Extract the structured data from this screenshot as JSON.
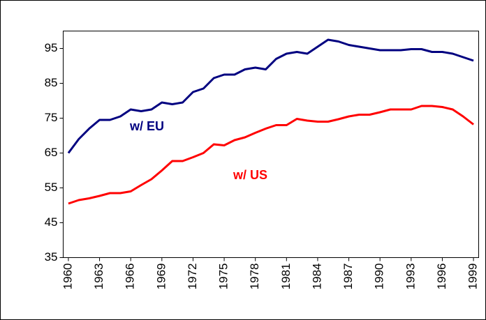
{
  "chart_data": {
    "type": "line",
    "x": [
      1960,
      1961,
      1962,
      1963,
      1964,
      1965,
      1966,
      1967,
      1968,
      1969,
      1970,
      1971,
      1972,
      1973,
      1974,
      1975,
      1976,
      1977,
      1978,
      1979,
      1980,
      1981,
      1982,
      1983,
      1984,
      1985,
      1986,
      1987,
      1988,
      1989,
      1990,
      1991,
      1992,
      1993,
      1994,
      1995,
      1996,
      1997,
      1998,
      1999
    ],
    "series": [
      {
        "name": "w/ EU",
        "color": "#000080",
        "values": [
          65,
          69,
          72,
          74.5,
          74.5,
          75.5,
          77.5,
          77,
          77.5,
          79.5,
          79,
          79.5,
          82.5,
          83.5,
          86.5,
          87.5,
          87.5,
          89,
          89.5,
          89,
          92,
          93.5,
          94,
          93.5,
          95.5,
          97.5,
          97,
          96,
          95.5,
          95,
          94.5,
          94.5,
          94.5,
          94.8,
          94.8,
          94,
          94,
          93.5,
          92.5,
          91.5
        ]
      },
      {
        "name": "w/ US",
        "color": "#ff0000",
        "values": [
          50.5,
          51.5,
          52,
          52.7,
          53.5,
          53.5,
          54,
          55.8,
          57.5,
          60,
          62.7,
          62.7,
          63.8,
          65,
          67.5,
          67.2,
          68.7,
          69.5,
          70.8,
          72,
          73,
          73,
          74.8,
          74.3,
          74,
          74,
          74.7,
          75.5,
          76,
          76,
          76.7,
          77.5,
          77.5,
          77.5,
          78.5,
          78.5,
          78.2,
          77.5,
          75.5,
          73.2
        ]
      }
    ],
    "xlim": [
      1959.5,
      1999.5
    ],
    "xticks": [
      1960,
      1963,
      1966,
      1969,
      1972,
      1975,
      1978,
      1981,
      1984,
      1987,
      1990,
      1993,
      1996,
      1999
    ],
    "ylim": [
      35,
      100
    ],
    "yticks": [
      35,
      45,
      55,
      65,
      75,
      85,
      95
    ],
    "grid": false
  }
}
